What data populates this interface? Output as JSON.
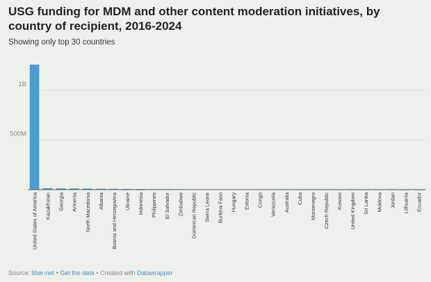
{
  "title": "USG funding for MDM and other content moderation initiatives, by country of recipient, 2016-2024",
  "subtitle": "Showing only top 30 countries",
  "footer": {
    "source_prefix": "Source:",
    "source": "liber-net",
    "sep1": "•",
    "get_data": "Get the data",
    "sep2": "• Created with",
    "tool": "Datawrapper"
  },
  "colors": {
    "bar": "#4a9fcf",
    "grid": "#d6dad3",
    "axis": "#555555",
    "background": "#eef1ea"
  },
  "chart_data": {
    "type": "bar",
    "title": "USG funding for MDM and other content moderation initiatives, by country of recipient, 2016-2024",
    "subtitle": "Showing only top 30 countries",
    "xlabel": "",
    "ylabel": "",
    "ylim": [
      0,
      1260000000
    ],
    "yticks": [
      500000000,
      1000000000
    ],
    "ytick_labels": [
      "500M",
      "1B"
    ],
    "grid": true,
    "categories": [
      "United States of America",
      "Kazakhstan",
      "Georgia",
      "Armenia",
      "North Macedonia",
      "Albania",
      "Bosnia and Herzegovina",
      "Ukraine",
      "Indonesia",
      "Philippines",
      "El Salvador",
      "Zimbabwe",
      "Dominican Republic",
      "Sierra Leone",
      "Burkina Faso",
      "Hungary",
      "Estonia",
      "Congo",
      "Venezuela",
      "Australia",
      "Cuba",
      "Montenegro",
      "Czech Republic",
      "Kosovo",
      "United Kingdom",
      "Sri Lanka",
      "Moldova",
      "Jordan",
      "Lithuania",
      "Ecuador"
    ],
    "values": [
      1260000000,
      15000000,
      13000000,
      12000000,
      11000000,
      9000000,
      8000000,
      7000000,
      6000000,
      5000000,
      5000000,
      4000000,
      3000000,
      3000000,
      2500000,
      2000000,
      2000000,
      1800000,
      1500000,
      1300000,
      1200000,
      1000000,
      900000,
      800000,
      700000,
      600000,
      500000,
      400000,
      300000,
      200000
    ]
  }
}
